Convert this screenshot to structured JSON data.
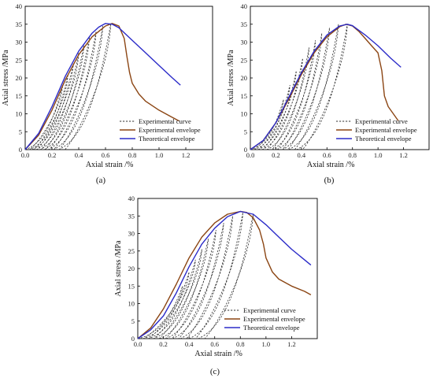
{
  "figure": {
    "panel_captions": [
      "(a)",
      "(b)",
      "(c)"
    ]
  },
  "colors": {
    "experimental_curve": "#333333",
    "experimental_envelope": "#8B4513",
    "theoretical_envelope": "#2B2BC8",
    "axis": "#000000"
  },
  "chart_data": [
    {
      "type": "line",
      "caption": "(a)",
      "xlabel": "Axial strain /%",
      "ylabel": "Axial stress /MPa",
      "xlim": [
        0,
        1.4
      ],
      "ylim": [
        0,
        40
      ],
      "xticks": [
        "0.0",
        "0.2",
        "0.4",
        "0.6",
        "0.8",
        "1.0",
        "1.2"
      ],
      "yticks": [
        "0",
        "5",
        "10",
        "15",
        "20",
        "25",
        "30",
        "35",
        "40"
      ],
      "legend": "bottom-right",
      "series": [
        {
          "name": "Experimental curve",
          "style": "dashed",
          "color": "#333333",
          "cycles": [
            {
              "x0": 0.0,
              "peak": [
                0.28,
                18
              ]
            },
            {
              "x0": 0.03,
              "peak": [
                0.32,
                21
              ]
            },
            {
              "x0": 0.05,
              "peak": [
                0.36,
                24
              ]
            },
            {
              "x0": 0.08,
              "peak": [
                0.4,
                27
              ]
            },
            {
              "x0": 0.11,
              "peak": [
                0.44,
                29.5
              ]
            },
            {
              "x0": 0.14,
              "peak": [
                0.48,
                31.5
              ]
            },
            {
              "x0": 0.17,
              "peak": [
                0.53,
                33
              ]
            },
            {
              "x0": 0.21,
              "peak": [
                0.58,
                34.5
              ]
            },
            {
              "x0": 0.25,
              "peak": [
                0.64,
                35.2
              ]
            }
          ]
        },
        {
          "name": "Experimental envelope",
          "style": "solid",
          "color": "#8B4513",
          "x": [
            0,
            0.1,
            0.2,
            0.3,
            0.4,
            0.5,
            0.6,
            0.65,
            0.7,
            0.74,
            0.76,
            0.78,
            0.8,
            0.85,
            0.9,
            1.0,
            1.1,
            1.15
          ],
          "y": [
            0,
            4,
            11,
            19.5,
            26.5,
            31.5,
            34.5,
            35.2,
            34.5,
            31,
            26,
            21.5,
            18.5,
            15.5,
            13.5,
            11,
            9,
            8
          ]
        },
        {
          "name": "Theoretical envelope",
          "style": "solid",
          "color": "#2B2BC8",
          "x": [
            0,
            0.1,
            0.2,
            0.3,
            0.4,
            0.5,
            0.55,
            0.6,
            0.65,
            0.7,
            0.8,
            0.9,
            1.0,
            1.1,
            1.16
          ],
          "y": [
            0,
            4.5,
            12,
            20.5,
            27.5,
            32.5,
            34.2,
            35.2,
            35,
            34,
            30.5,
            27,
            23.5,
            20,
            18
          ]
        }
      ]
    },
    {
      "type": "line",
      "caption": "(b)",
      "xlabel": "Axial strain /%",
      "ylabel": "Axial stress /MPa",
      "xlim": [
        0,
        1.4
      ],
      "ylim": [
        0,
        40
      ],
      "xticks": [
        "0.0",
        "0.2",
        "0.4",
        "0.6",
        "0.8",
        "1.0",
        "1.2"
      ],
      "yticks": [
        "0",
        "5",
        "10",
        "15",
        "20",
        "25",
        "30",
        "35",
        "40"
      ],
      "legend": "bottom-right",
      "series": [
        {
          "name": "Experimental curve",
          "style": "dashed",
          "color": "#333333",
          "cycles": [
            {
              "x0": 0.0,
              "peak": [
                0.26,
                14
              ]
            },
            {
              "x0": 0.03,
              "peak": [
                0.31,
                18
              ]
            },
            {
              "x0": 0.06,
              "peak": [
                0.36,
                22
              ]
            },
            {
              "x0": 0.09,
              "peak": [
                0.41,
                25.5
              ]
            },
            {
              "x0": 0.13,
              "peak": [
                0.46,
                28.5
              ]
            },
            {
              "x0": 0.17,
              "peak": [
                0.51,
                30.5
              ]
            },
            {
              "x0": 0.21,
              "peak": [
                0.56,
                32.5
              ]
            },
            {
              "x0": 0.25,
              "peak": [
                0.62,
                34
              ]
            },
            {
              "x0": 0.3,
              "peak": [
                0.69,
                35
              ]
            },
            {
              "x0": 0.36,
              "peak": [
                0.76,
                35
              ]
            }
          ]
        },
        {
          "name": "Experimental envelope",
          "style": "solid",
          "color": "#8B4513",
          "x": [
            0,
            0.1,
            0.2,
            0.3,
            0.4,
            0.5,
            0.6,
            0.7,
            0.75,
            0.8,
            0.85,
            0.9,
            0.95,
            1.0,
            1.03,
            1.05,
            1.08,
            1.12,
            1.16
          ],
          "y": [
            0,
            2.5,
            7.5,
            14,
            21,
            27,
            31.5,
            34.3,
            35,
            34.5,
            33,
            31,
            29,
            27,
            22,
            15,
            12,
            10,
            8
          ]
        },
        {
          "name": "Theoretical envelope",
          "style": "solid",
          "color": "#2B2BC8",
          "x": [
            0,
            0.1,
            0.2,
            0.3,
            0.4,
            0.5,
            0.6,
            0.7,
            0.76,
            0.8,
            0.9,
            1.0,
            1.1,
            1.18
          ],
          "y": [
            0,
            2.5,
            7.5,
            14.5,
            21.5,
            27.5,
            32,
            34.5,
            35,
            34.6,
            32,
            29,
            25.5,
            23
          ]
        }
      ]
    },
    {
      "type": "line",
      "caption": "(c)",
      "xlabel": "Axial strain /%",
      "ylabel": "Axial stress /MPa",
      "xlim": [
        0,
        1.4
      ],
      "ylim": [
        0,
        40
      ],
      "xticks": [
        "0.0",
        "0.2",
        "0.4",
        "0.6",
        "0.8",
        "1.0",
        "1.2"
      ],
      "yticks": [
        "0",
        "5",
        "10",
        "15",
        "20",
        "25",
        "30",
        "35",
        "40"
      ],
      "legend": "bottom-right",
      "series": [
        {
          "name": "Experimental curve",
          "style": "dashed",
          "color": "#333333",
          "cycles": [
            {
              "x0": 0.0,
              "peak": [
                0.35,
                15
              ]
            },
            {
              "x0": 0.04,
              "peak": [
                0.4,
                19
              ]
            },
            {
              "x0": 0.08,
              "peak": [
                0.45,
                22.5
              ]
            },
            {
              "x0": 0.12,
              "peak": [
                0.5,
                25.5
              ]
            },
            {
              "x0": 0.17,
              "peak": [
                0.55,
                28.5
              ]
            },
            {
              "x0": 0.22,
              "peak": [
                0.61,
                31
              ]
            },
            {
              "x0": 0.27,
              "peak": [
                0.67,
                33
              ]
            },
            {
              "x0": 0.33,
              "peak": [
                0.74,
                35
              ]
            },
            {
              "x0": 0.4,
              "peak": [
                0.82,
                36
              ]
            },
            {
              "x0": 0.47,
              "peak": [
                0.9,
                35.5
              ]
            }
          ]
        },
        {
          "name": "Experimental envelope",
          "style": "solid",
          "color": "#8B4513",
          "x": [
            0,
            0.1,
            0.2,
            0.3,
            0.4,
            0.5,
            0.6,
            0.7,
            0.8,
            0.85,
            0.9,
            0.95,
            0.98,
            1.0,
            1.05,
            1.1,
            1.2,
            1.3,
            1.35
          ],
          "y": [
            0,
            3,
            8.5,
            15.5,
            23,
            29,
            33,
            35.5,
            36.3,
            36,
            34.5,
            31,
            27,
            23,
            19,
            17,
            15,
            13.5,
            12.5
          ]
        },
        {
          "name": "Theoretical envelope",
          "style": "solid",
          "color": "#2B2BC8",
          "x": [
            0,
            0.1,
            0.2,
            0.3,
            0.4,
            0.5,
            0.6,
            0.7,
            0.8,
            0.9,
            1.0,
            1.1,
            1.2,
            1.35
          ],
          "y": [
            0,
            2.5,
            6.5,
            13,
            20.5,
            27,
            31.5,
            34.8,
            36.3,
            35.5,
            32.5,
            29,
            25.5,
            21
          ]
        }
      ]
    }
  ]
}
